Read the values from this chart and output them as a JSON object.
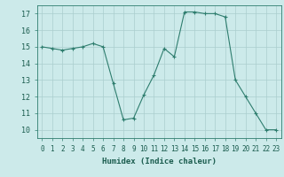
{
  "x": [
    0,
    1,
    2,
    3,
    4,
    5,
    6,
    7,
    8,
    9,
    10,
    11,
    12,
    13,
    14,
    15,
    16,
    17,
    18,
    19,
    20,
    21,
    22,
    23
  ],
  "y": [
    15.0,
    14.9,
    14.8,
    14.9,
    15.0,
    15.2,
    15.0,
    12.8,
    10.6,
    10.7,
    12.1,
    13.3,
    14.9,
    14.4,
    17.1,
    17.1,
    17.0,
    17.0,
    16.8,
    13.0,
    12.0,
    11.0,
    10.0,
    10.0
  ],
  "xlabel": "Humidex (Indice chaleur)",
  "xlim": [
    -0.5,
    23.5
  ],
  "ylim": [
    9.5,
    17.5
  ],
  "yticks": [
    10,
    11,
    12,
    13,
    14,
    15,
    16,
    17
  ],
  "xticks": [
    0,
    1,
    2,
    3,
    4,
    5,
    6,
    7,
    8,
    9,
    10,
    11,
    12,
    13,
    14,
    15,
    16,
    17,
    18,
    19,
    20,
    21,
    22,
    23
  ],
  "xtick_labels": [
    "0",
    "1",
    "2",
    "3",
    "4",
    "5",
    "6",
    "7",
    "8",
    "9",
    "10",
    "11",
    "12",
    "13",
    "14",
    "15",
    "16",
    "17",
    "18",
    "19",
    "20",
    "21",
    "22",
    "23"
  ],
  "line_color": "#2e7d6e",
  "marker": "+",
  "bg_color": "#cceaea",
  "grid_color": "#aacece",
  "text_color": "#1a5c4e",
  "tick_fontsize": 5.5,
  "xlabel_fontsize": 6.5
}
